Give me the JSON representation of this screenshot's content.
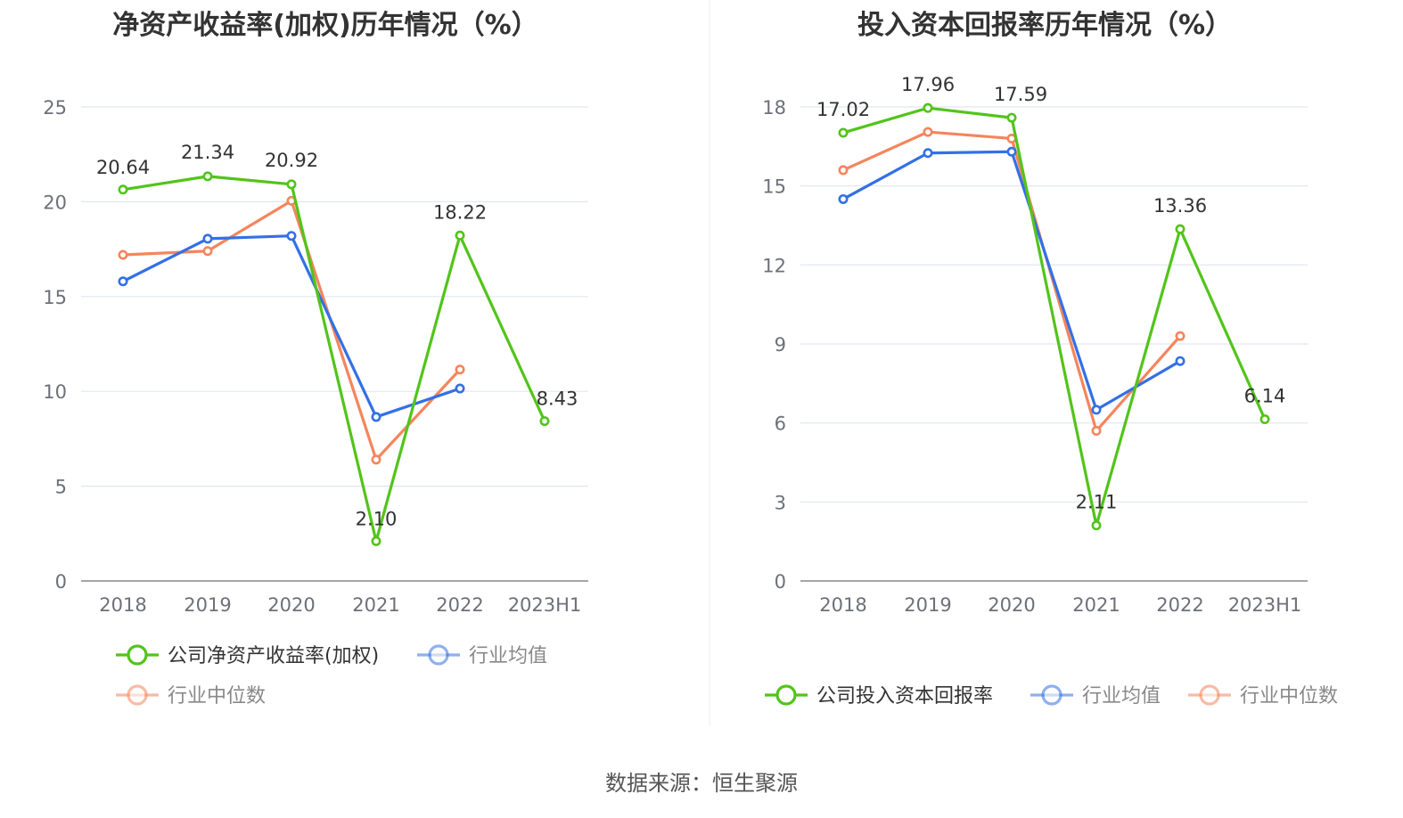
{
  "source": "数据来源：恒生聚源",
  "chart_data": [
    {
      "type": "line",
      "title": "净资产收益率(加权)历年情况（%）",
      "categories": [
        "2018",
        "2019",
        "2020",
        "2021",
        "2022",
        "2023H1"
      ],
      "ylim": [
        0,
        25
      ],
      "yticks": [
        0,
        5,
        10,
        15,
        20,
        25
      ],
      "grid": true,
      "legend_position": "bottom-left",
      "series": [
        {
          "name": "公司净资产收益率(加权)",
          "color": "#52c41a",
          "values": [
            20.64,
            21.34,
            20.92,
            2.1,
            18.22,
            8.43
          ],
          "labels": [
            "20.64",
            "21.34",
            "20.92",
            "2.10",
            "18.22",
            "8.43"
          ]
        },
        {
          "name": "行业均值",
          "color": "#3370e6",
          "values": [
            15.8,
            18.05,
            18.2,
            8.65,
            10.15,
            null
          ]
        },
        {
          "name": "行业中位数",
          "color": "#f5855c",
          "values": [
            17.2,
            17.4,
            20.05,
            6.4,
            11.15,
            null
          ]
        }
      ]
    },
    {
      "type": "line",
      "title": "投入资本回报率历年情况（%）",
      "categories": [
        "2018",
        "2019",
        "2020",
        "2021",
        "2022",
        "2023H1"
      ],
      "ylim": [
        0,
        18
      ],
      "yticks": [
        0,
        3,
        6,
        9,
        12,
        15,
        18
      ],
      "grid": true,
      "legend_position": "bottom",
      "series": [
        {
          "name": "公司投入资本回报率",
          "color": "#52c41a",
          "values": [
            17.02,
            17.96,
            17.59,
            2.11,
            13.36,
            6.14
          ],
          "labels": [
            "17.02",
            "17.96",
            "17.59",
            "2.11",
            "13.36",
            "6.14"
          ]
        },
        {
          "name": "行业均值",
          "color": "#3370e6",
          "values": [
            14.5,
            16.25,
            16.3,
            6.5,
            8.35,
            null
          ]
        },
        {
          "name": "行业中位数",
          "color": "#f5855c",
          "values": [
            15.6,
            17.05,
            16.8,
            5.7,
            9.3,
            null
          ]
        }
      ]
    }
  ]
}
